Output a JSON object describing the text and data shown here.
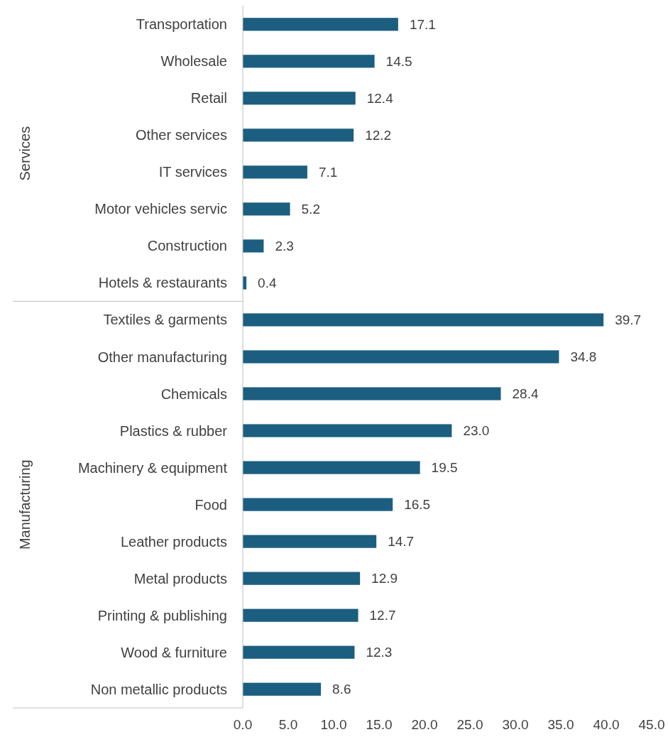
{
  "chart_data": {
    "type": "bar",
    "orientation": "horizontal",
    "categories": [
      "Transportation",
      "Wholesale",
      "Retail",
      "Other services",
      "IT services",
      "Motor vehicles servic",
      "Construction",
      "Hotels & restaurants",
      "Textiles & garments",
      "Other manufacturing",
      "Chemicals",
      "Plastics & rubber",
      "Machinery & equipment",
      "Food",
      "Leather products",
      "Metal products",
      "Printing & publishing",
      "Wood & furniture",
      "Non metallic products"
    ],
    "values": [
      17.1,
      14.5,
      12.4,
      12.2,
      7.1,
      5.2,
      2.3,
      0.4,
      39.7,
      34.8,
      28.4,
      23.0,
      19.5,
      16.5,
      14.7,
      12.9,
      12.7,
      12.3,
      8.6
    ],
    "value_labels": [
      "17.1",
      "14.5",
      "12.4",
      "12.2",
      "7.1",
      "5.2",
      "2.3",
      "0.4",
      "39.7",
      "34.8",
      "28.4",
      "23.0",
      "19.5",
      "16.5",
      "14.7",
      "12.9",
      "12.7",
      "12.3",
      "8.6"
    ],
    "color": "#1b5e80",
    "xlim": [
      0,
      45
    ],
    "xticks": [
      {
        "value": 0,
        "label": "0.0"
      },
      {
        "value": 5,
        "label": "5.0"
      },
      {
        "value": 10,
        "label": "10.0"
      },
      {
        "value": 15,
        "label": "15.0"
      },
      {
        "value": 20,
        "label": "20.0"
      },
      {
        "value": 25,
        "label": "25.0"
      },
      {
        "value": 30,
        "label": "30.0"
      },
      {
        "value": 35,
        "label": "35.0"
      },
      {
        "value": 40,
        "label": "40.0"
      },
      {
        "value": 45,
        "label": "45.0"
      }
    ],
    "annotations": [
      "Services",
      "Manufacturing"
    ],
    "grid": false
  }
}
